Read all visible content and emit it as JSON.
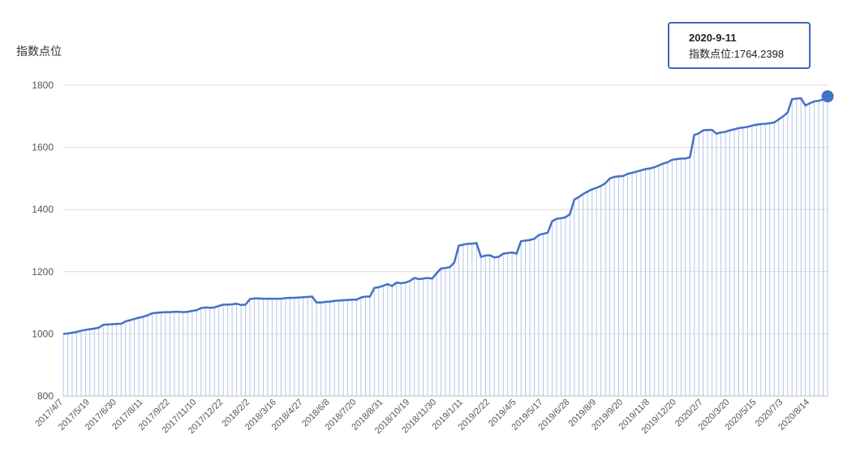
{
  "chart_data": {
    "type": "line",
    "y_label": "指数点位",
    "ylim": [
      800,
      1800
    ],
    "yticks": [
      800,
      1000,
      1200,
      1400,
      1600,
      1800
    ],
    "grid": true,
    "color": "#4472c4",
    "drop_line_color": "#b4c6e8",
    "categories": [
      "2017/4/7",
      null,
      null,
      null,
      null,
      null,
      "2017/5/19",
      null,
      null,
      null,
      null,
      null,
      "2017/6/30",
      null,
      null,
      null,
      null,
      null,
      "2017/8/11",
      null,
      null,
      null,
      null,
      null,
      "2017/9/22",
      null,
      null,
      null,
      null,
      null,
      "2017/11/10",
      null,
      null,
      null,
      null,
      null,
      "2017/12/22",
      null,
      null,
      null,
      null,
      null,
      "2018/2/2",
      null,
      null,
      null,
      null,
      null,
      "2018/3/16",
      null,
      null,
      null,
      null,
      null,
      "2018/4/27",
      null,
      null,
      null,
      null,
      null,
      "2018/6/8",
      null,
      null,
      null,
      null,
      null,
      "2018/7/20",
      null,
      null,
      null,
      null,
      null,
      "2018/8/31",
      null,
      null,
      null,
      null,
      null,
      "2018/10/19",
      null,
      null,
      null,
      null,
      null,
      "2018/11/30",
      null,
      null,
      null,
      null,
      null,
      "2019/1/11",
      null,
      null,
      null,
      null,
      null,
      "2019/2/22",
      null,
      null,
      null,
      null,
      null,
      "2019/4/5",
      null,
      null,
      null,
      null,
      null,
      "2019/5/17",
      null,
      null,
      null,
      null,
      null,
      "2019/6/28",
      null,
      null,
      null,
      null,
      null,
      "2019/8/9",
      null,
      null,
      null,
      null,
      null,
      "2019/9/20",
      null,
      null,
      null,
      null,
      null,
      "2019/11/8",
      null,
      null,
      null,
      null,
      null,
      "2019/12/20",
      null,
      null,
      null,
      null,
      null,
      "2020/2/7",
      null,
      null,
      null,
      null,
      null,
      "2020/3/20",
      null,
      null,
      null,
      null,
      null,
      "2020/5/15",
      null,
      null,
      null,
      null,
      null,
      "2020/7/3",
      null,
      null,
      null,
      null,
      null,
      "2020/8/14",
      null,
      null,
      null,
      null
    ],
    "values": [
      1000,
      1001,
      1004,
      1006,
      1010,
      1013,
      1015,
      1017,
      1020,
      1029,
      1030,
      1031,
      1032,
      1032,
      1040,
      1044,
      1048,
      1052,
      1055,
      1060,
      1066,
      1068,
      1069,
      1070,
      1070,
      1071,
      1071,
      1070,
      1071,
      1074,
      1076,
      1083,
      1085,
      1084,
      1085,
      1090,
      1094,
      1094,
      1095,
      1097,
      1093,
      1094,
      1112,
      1114,
      1114,
      1113,
      1113,
      1113,
      1113,
      1113,
      1115,
      1116,
      1116,
      1117,
      1118,
      1119,
      1120,
      1101,
      1101,
      1103,
      1104,
      1106,
      1107,
      1108,
      1109,
      1110,
      1110,
      1117,
      1120,
      1120,
      1148,
      1150,
      1155,
      1160,
      1154,
      1165,
      1163,
      1165,
      1170,
      1180,
      1176,
      1178,
      1180,
      1178,
      1195,
      1210,
      1212,
      1215,
      1230,
      1284,
      1287,
      1290,
      1290,
      1292,
      1248,
      1252,
      1253,
      1246,
      1248,
      1258,
      1260,
      1262,
      1258,
      1298,
      1300,
      1302,
      1306,
      1318,
      1322,
      1325,
      1362,
      1370,
      1372,
      1375,
      1385,
      1432,
      1440,
      1450,
      1458,
      1465,
      1470,
      1476,
      1485,
      1500,
      1505,
      1507,
      1508,
      1515,
      1518,
      1522,
      1526,
      1530,
      1532,
      1536,
      1542,
      1548,
      1552,
      1560,
      1562,
      1564,
      1564,
      1568,
      1640,
      1645,
      1655,
      1656,
      1656,
      1644,
      1648,
      1650,
      1655,
      1658,
      1662,
      1664,
      1666,
      1670,
      1673,
      1675,
      1676,
      1678,
      1680,
      1690,
      1700,
      1712,
      1755,
      1757,
      1758,
      1735,
      1742,
      1748,
      1750,
      1754,
      1764.2398
    ],
    "tooltip": {
      "title": "2020-9-11",
      "text": "指数点位:1764.2398"
    }
  }
}
